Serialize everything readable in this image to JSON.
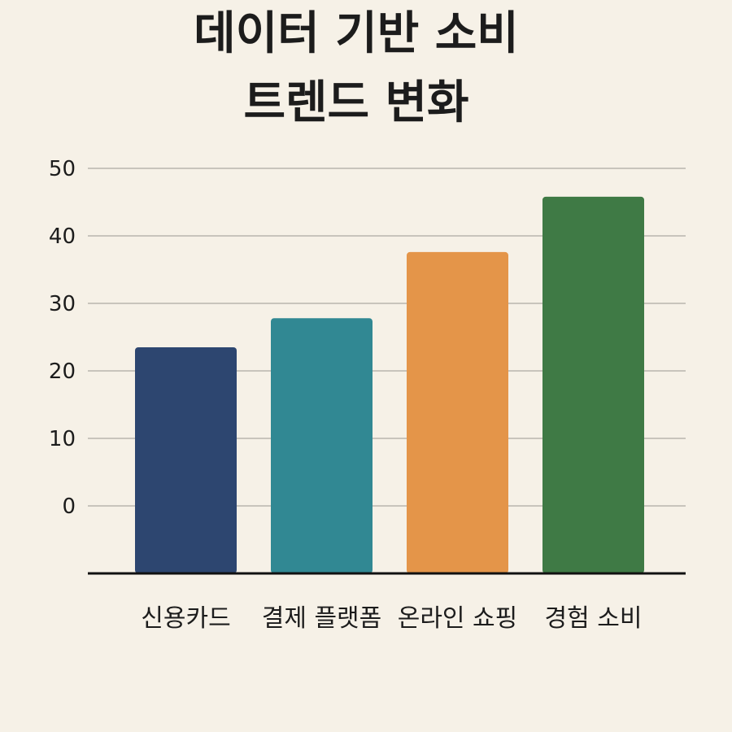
{
  "chart_data": {
    "type": "bar",
    "title_lines": [
      "데이터 기반 소비",
      "트렌드 변화"
    ],
    "xlabel": "",
    "ylabel": "",
    "categories": [
      "신용카드",
      "결제 플랫폼",
      "온라인 쇼핑",
      "경험 소비"
    ],
    "values": [
      23.5,
      27.8,
      37.6,
      45.8
    ],
    "colors": [
      "#2d4670",
      "#318893",
      "#e49549",
      "#3f7a45"
    ],
    "yticks": [
      0,
      10,
      20,
      30,
      40,
      50
    ],
    "ylim": [
      -10,
      50
    ],
    "grid": true,
    "legend": "none"
  }
}
